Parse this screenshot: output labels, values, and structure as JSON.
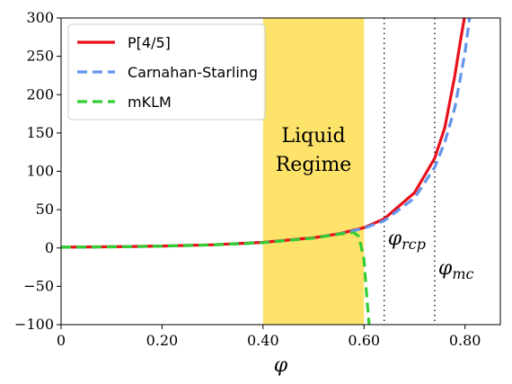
{
  "chart_data": {
    "type": "line",
    "xlabel": "φ",
    "ylabel": "",
    "xlim": [
      0,
      0.87
    ],
    "ylim": [
      -100,
      300
    ],
    "x_ticks": [
      0,
      0.2,
      0.4,
      0.6,
      0.8
    ],
    "x_tick_labels": [
      "0",
      "0.20",
      "0.40",
      "0.60",
      "0.80"
    ],
    "y_ticks": [
      -100,
      -50,
      0,
      50,
      100,
      150,
      200,
      250,
      300
    ],
    "y_tick_labels": [
      "−100",
      "−50",
      "0",
      "50",
      "100",
      "150",
      "200",
      "250",
      "300"
    ],
    "grid": false,
    "legend_position": "top-left",
    "series": [
      {
        "name": "P[4/5]",
        "color": "#e8101a",
        "style": "solid",
        "x": [
          0,
          0.1,
          0.2,
          0.3,
          0.4,
          0.5,
          0.55,
          0.6,
          0.64,
          0.7,
          0.74,
          0.76,
          0.78,
          0.79,
          0.8
        ],
        "y": [
          1,
          1.6,
          2.5,
          4.2,
          7.3,
          13.3,
          18.5,
          26.5,
          38,
          72,
          117,
          157,
          225,
          266,
          305
        ]
      },
      {
        "name": "Carnahan-Starling",
        "color": "#6495ed",
        "style": "dashed",
        "x": [
          0,
          0.1,
          0.2,
          0.3,
          0.4,
          0.5,
          0.55,
          0.6,
          0.64,
          0.7,
          0.74,
          0.76,
          0.78,
          0.8,
          0.81
        ],
        "y": [
          1,
          1.5,
          2.4,
          4.0,
          7.0,
          13.0,
          18.2,
          25.8,
          35.5,
          65,
          105,
          138,
          183,
          255,
          305
        ]
      },
      {
        "name": "mKLM",
        "color": "#32cd32",
        "style": "dashed",
        "x": [
          0,
          0.1,
          0.2,
          0.3,
          0.4,
          0.5,
          0.55,
          0.58,
          0.59,
          0.6,
          0.605,
          0.61
        ],
        "y": [
          1,
          1.5,
          2.4,
          4.0,
          7.0,
          13.0,
          18.0,
          20.0,
          15.0,
          -15.0,
          -60.0,
          -100.0
        ]
      }
    ],
    "shaded_region": {
      "x": [
        0.4,
        0.6
      ],
      "color": "#fde36a",
      "label": "Liquid\nRegime"
    },
    "vertical_lines": [
      {
        "x": 0.64,
        "label": "φ",
        "subscript": "rcp"
      },
      {
        "x": 0.74,
        "label": "φ",
        "subscript": "mc"
      }
    ]
  }
}
